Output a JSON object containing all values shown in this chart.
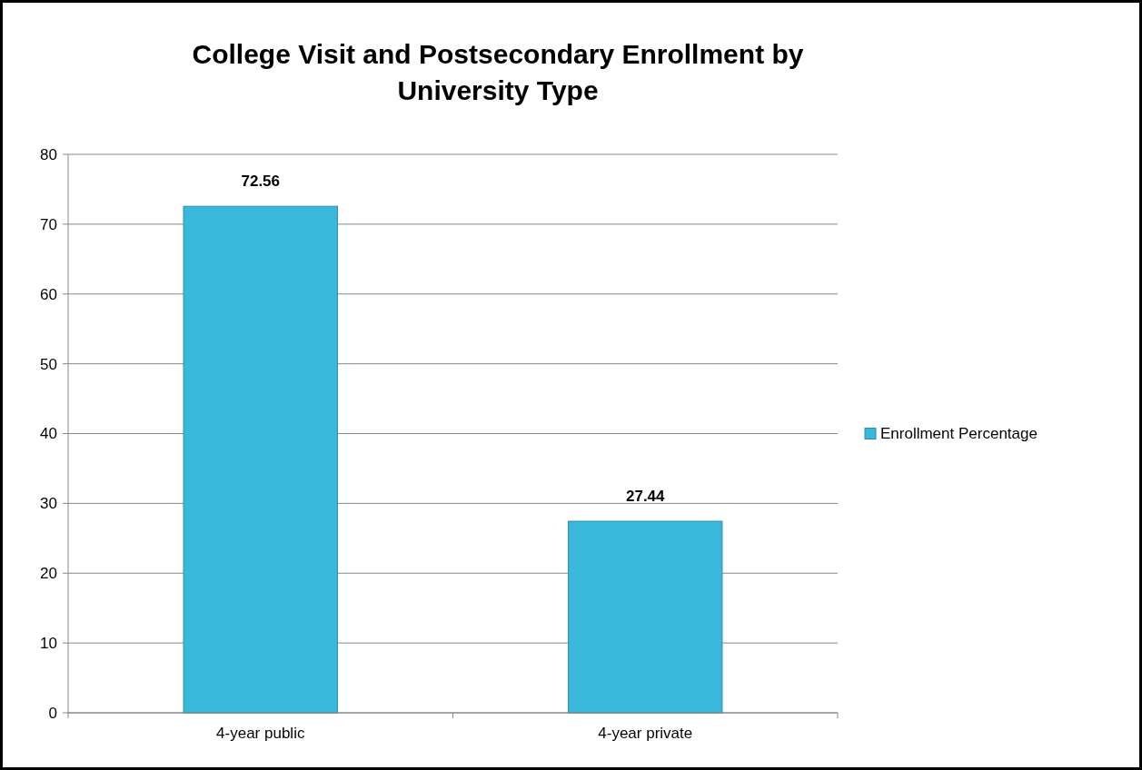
{
  "chart_data": {
    "type": "bar",
    "title": "College Visit and Postsecondary Enrollment by University Type",
    "categories": [
      "4-year public",
      "4-year private"
    ],
    "series": [
      {
        "name": "Enrollment Percentage",
        "color": "#3ab8dc",
        "values": [
          72.56,
          27.44
        ]
      }
    ],
    "ylim": [
      0,
      80
    ],
    "yticks": [
      0,
      10,
      20,
      30,
      40,
      50,
      60,
      70,
      80
    ],
    "grid": "y",
    "legend": "right",
    "data_labels": true
  }
}
